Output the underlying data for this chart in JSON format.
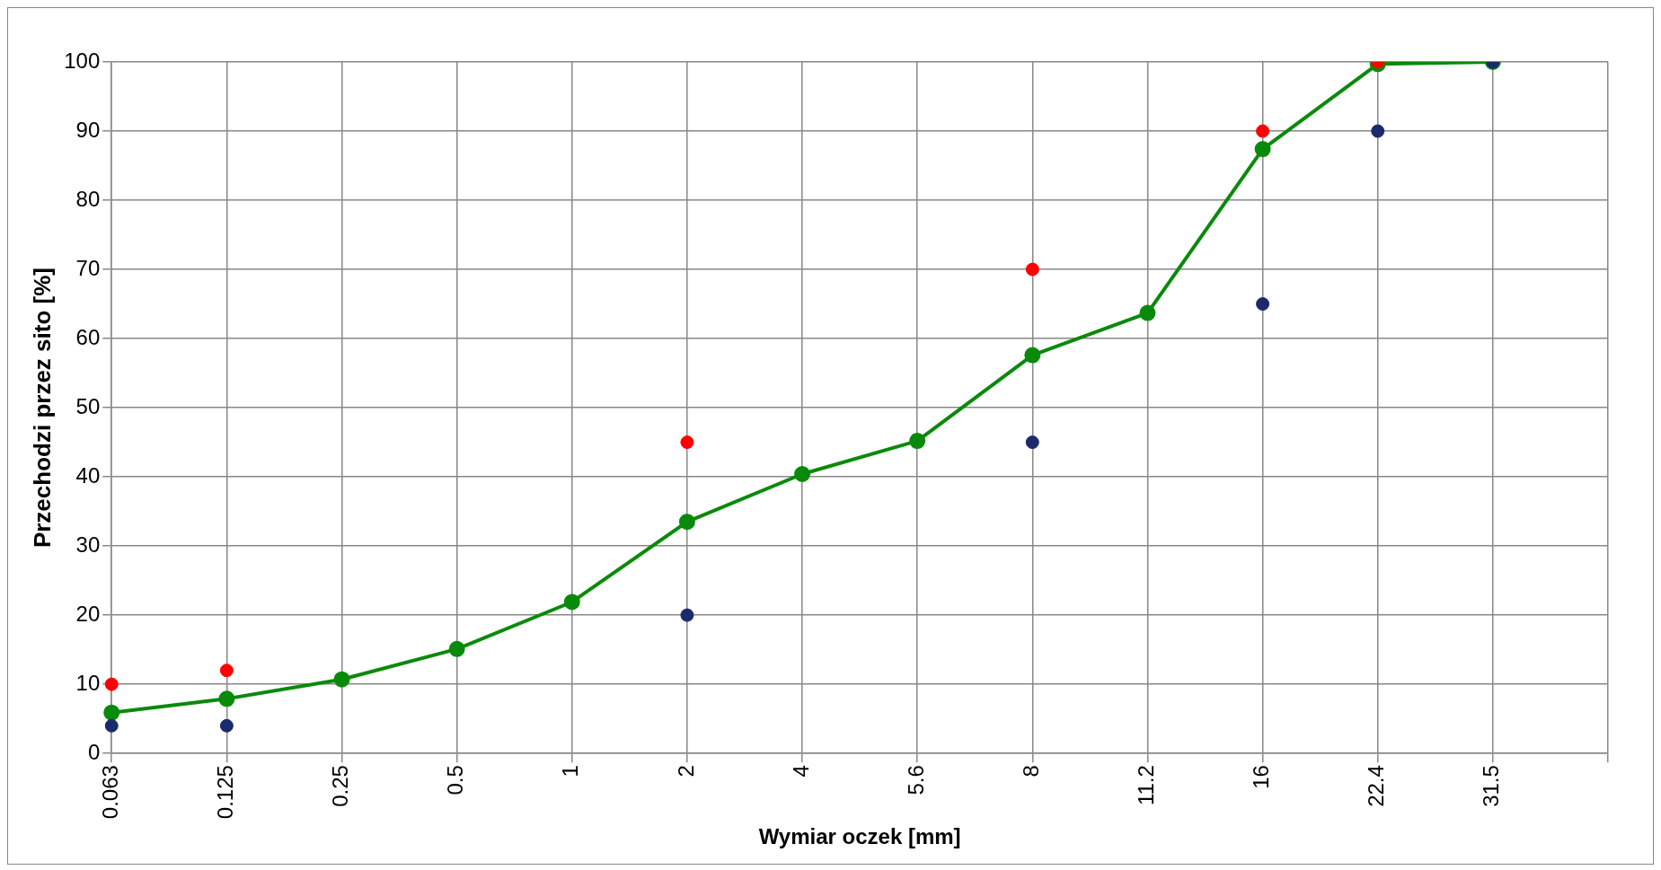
{
  "chart_data": {
    "type": "line",
    "xlabel": "Wymiar oczek [mm]",
    "ylabel": "Przechodzi przez sito [%]",
    "categories": [
      "0.063",
      "0.125",
      "0.25",
      "0.5",
      "1",
      "2",
      "4",
      "5.6",
      "8",
      "11.2",
      "16",
      "22.4",
      "31.5",
      null
    ],
    "series": [
      {
        "type": "scatter",
        "color": "#ff0000",
        "values": [
          10,
          12,
          null,
          null,
          null,
          45,
          null,
          null,
          70,
          null,
          90,
          100,
          null,
          null
        ]
      },
      {
        "type": "scatter",
        "color": "#1a2a6c",
        "values": [
          4,
          4,
          null,
          null,
          null,
          20,
          null,
          null,
          45,
          null,
          65,
          90,
          100,
          null
        ]
      },
      {
        "color": "#0a8a0a",
        "values": [
          5.9,
          7.9,
          10.7,
          15.1,
          21.9,
          33.5,
          40.4,
          45.2,
          57.6,
          63.7,
          87.4,
          99.7,
          100,
          null
        ]
      }
    ],
    "ylim": [
      0,
      100
    ],
    "yticks": [
      0,
      10,
      20,
      30,
      40,
      50,
      60,
      70,
      80,
      90,
      100
    ],
    "grid": true,
    "marker": "circle",
    "line_style": "solid"
  }
}
